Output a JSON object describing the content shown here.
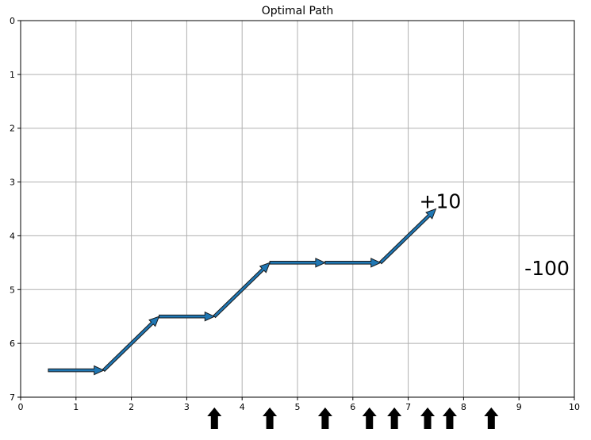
{
  "chart_data": {
    "type": "line",
    "title": "Optimal Path",
    "xlabel": "",
    "ylabel": "",
    "xlim": [
      0,
      10
    ],
    "ylim": [
      7,
      0
    ],
    "y_inverted": true,
    "grid": true,
    "x_ticks": [
      "0",
      "1",
      "2",
      "3",
      "4",
      "5",
      "6",
      "7",
      "8",
      "9",
      "10"
    ],
    "y_ticks": [
      "0",
      "1",
      "2",
      "3",
      "4",
      "5",
      "6",
      "7"
    ],
    "path_arrows": [
      {
        "from": [
          0.5,
          6.5
        ],
        "to": [
          1.5,
          6.5
        ]
      },
      {
        "from": [
          1.5,
          6.5
        ],
        "to": [
          2.5,
          5.5
        ]
      },
      {
        "from": [
          2.5,
          5.5
        ],
        "to": [
          3.5,
          5.5
        ]
      },
      {
        "from": [
          3.5,
          5.5
        ],
        "to": [
          4.5,
          4.5
        ]
      },
      {
        "from": [
          4.5,
          4.5
        ],
        "to": [
          5.5,
          4.5
        ]
      },
      {
        "from": [
          5.5,
          4.5
        ],
        "to": [
          6.5,
          4.5
        ]
      },
      {
        "from": [
          6.5,
          4.5
        ],
        "to": [
          7.5,
          3.5
        ]
      }
    ],
    "annotations": [
      {
        "text": "+10",
        "x": 7.2,
        "y": 3.35
      },
      {
        "text": "-100",
        "x": 9.1,
        "y": 4.6
      }
    ],
    "bottom_up_arrows_x": [
      3.5,
      4.5,
      5.5,
      6.3,
      6.75,
      7.35,
      7.75,
      8.5
    ],
    "colors": {
      "path_fill": "#1f77b4",
      "path_edge": "#1a1a1a",
      "grid": "#b0b0b0",
      "axis": "#000000",
      "up_arrow": "#000000"
    }
  }
}
